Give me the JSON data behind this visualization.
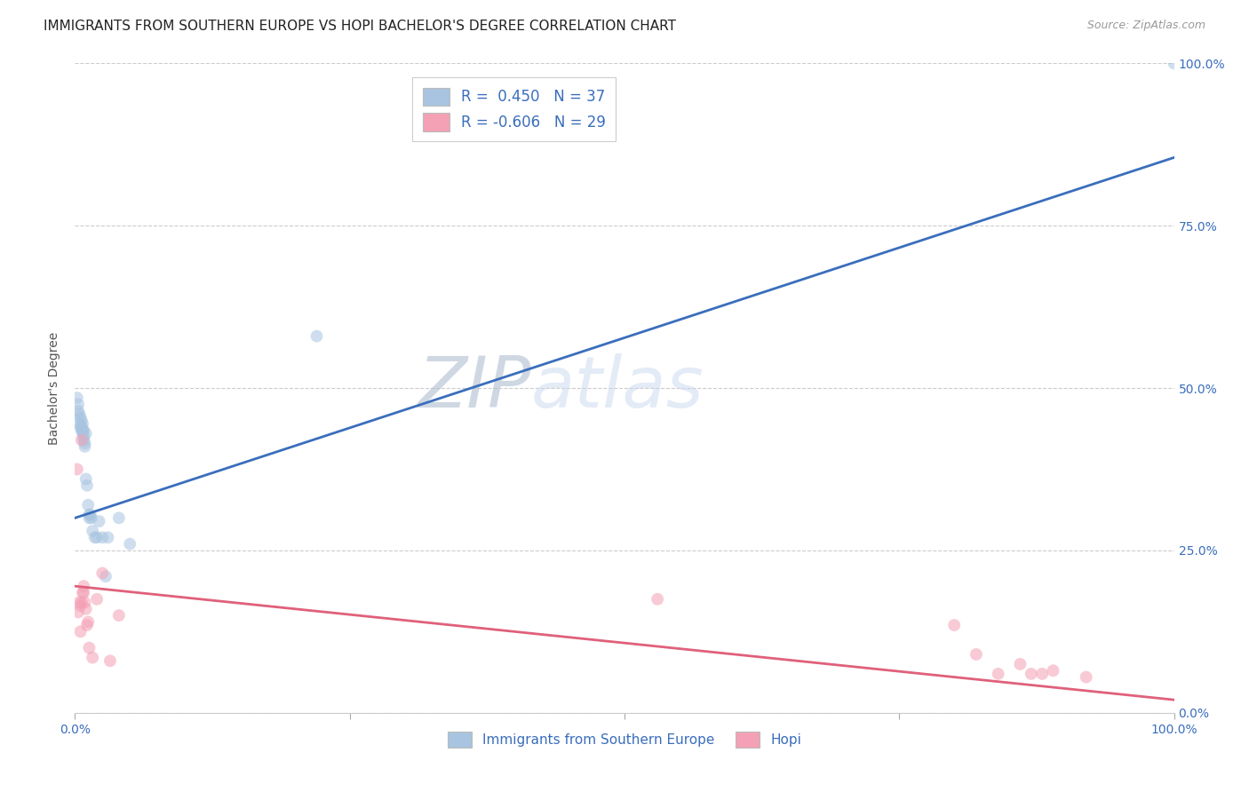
{
  "title": "IMMIGRANTS FROM SOUTHERN EUROPE VS HOPI BACHELOR'S DEGREE CORRELATION CHART",
  "source": "Source: ZipAtlas.com",
  "xlabel_blue": "Immigrants from Southern Europe",
  "xlabel_pink": "Hopi",
  "ylabel": "Bachelor's Degree",
  "blue_R": 0.45,
  "blue_N": 37,
  "pink_R": -0.606,
  "pink_N": 29,
  "blue_color": "#a8c4e0",
  "blue_line_color": "#3a6ebc",
  "pink_color": "#f4a0b5",
  "pink_line_color": "#e0607a",
  "blue_points_x": [
    0.002,
    0.003,
    0.003,
    0.004,
    0.004,
    0.005,
    0.005,
    0.006,
    0.006,
    0.006,
    0.007,
    0.007,
    0.007,
    0.008,
    0.008,
    0.008,
    0.009,
    0.009,
    0.01,
    0.01,
    0.011,
    0.012,
    0.013,
    0.013,
    0.014,
    0.015,
    0.016,
    0.018,
    0.02,
    0.022,
    0.025,
    0.028,
    0.03,
    0.04,
    0.05,
    0.22,
    1.0
  ],
  "blue_points_y": [
    0.485,
    0.475,
    0.465,
    0.46,
    0.445,
    0.455,
    0.44,
    0.45,
    0.44,
    0.435,
    0.445,
    0.435,
    0.43,
    0.435,
    0.425,
    0.42,
    0.415,
    0.41,
    0.43,
    0.36,
    0.35,
    0.32,
    0.305,
    0.3,
    0.305,
    0.3,
    0.28,
    0.27,
    0.27,
    0.295,
    0.27,
    0.21,
    0.27,
    0.3,
    0.26,
    0.58,
    1.0
  ],
  "pink_points_x": [
    0.002,
    0.003,
    0.004,
    0.005,
    0.005,
    0.006,
    0.006,
    0.007,
    0.008,
    0.008,
    0.009,
    0.01,
    0.011,
    0.012,
    0.013,
    0.016,
    0.02,
    0.025,
    0.032,
    0.04,
    0.53,
    0.8,
    0.82,
    0.84,
    0.86,
    0.87,
    0.88,
    0.89,
    0.92
  ],
  "pink_points_y": [
    0.375,
    0.155,
    0.17,
    0.165,
    0.125,
    0.42,
    0.17,
    0.185,
    0.185,
    0.195,
    0.17,
    0.16,
    0.135,
    0.14,
    0.1,
    0.085,
    0.175,
    0.215,
    0.08,
    0.15,
    0.175,
    0.135,
    0.09,
    0.06,
    0.075,
    0.06,
    0.06,
    0.065,
    0.055
  ],
  "blue_line_x0": 0.0,
  "blue_line_y0": 0.3,
  "blue_line_x1": 1.0,
  "blue_line_y1": 0.855,
  "pink_line_x0": 0.0,
  "pink_line_y0": 0.195,
  "pink_line_x1": 1.0,
  "pink_line_y1": 0.02,
  "xlim": [
    0.0,
    1.0
  ],
  "ylim": [
    0.0,
    1.0
  ],
  "background_color": "#ffffff",
  "grid_color": "#cccccc",
  "title_fontsize": 11,
  "axis_label_fontsize": 10,
  "tick_fontsize": 10,
  "marker_size": 100,
  "marker_alpha": 0.55,
  "line_width": 2.0
}
